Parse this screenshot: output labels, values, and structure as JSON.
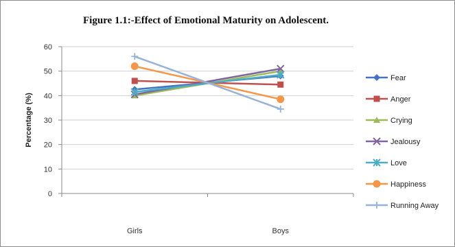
{
  "chart_data": {
    "type": "line",
    "title": "Figure 1.1:-Effect of Emotional Maturity on Adolescent.",
    "xlabel": "",
    "ylabel": "Percentage (%)",
    "categories": [
      "Girls",
      "Boys"
    ],
    "ylim": [
      0,
      60
    ],
    "yticks": [
      0,
      10,
      20,
      30,
      40,
      50,
      60
    ],
    "grid": true,
    "legend_position": "right",
    "series": [
      {
        "name": "Fear",
        "values": [
          42.5,
          48
        ],
        "color": "#4472C4",
        "marker": "diamond"
      },
      {
        "name": "Anger",
        "values": [
          46,
          44.5
        ],
        "color": "#C0504D",
        "marker": "square"
      },
      {
        "name": "Crying",
        "values": [
          40,
          50
        ],
        "color": "#9BBB59",
        "marker": "triangle"
      },
      {
        "name": "Jealousy",
        "values": [
          40.5,
          51
        ],
        "color": "#8064A2",
        "marker": "x"
      },
      {
        "name": "Love",
        "values": [
          41.5,
          48.5
        ],
        "color": "#4BACC6",
        "marker": "star"
      },
      {
        "name": "Happiness",
        "values": [
          52,
          38.5
        ],
        "color": "#F79646",
        "marker": "circle"
      },
      {
        "name": "Running Away",
        "values": [
          56,
          34.5
        ],
        "color": "#95B3D7",
        "marker": "plus"
      }
    ]
  }
}
